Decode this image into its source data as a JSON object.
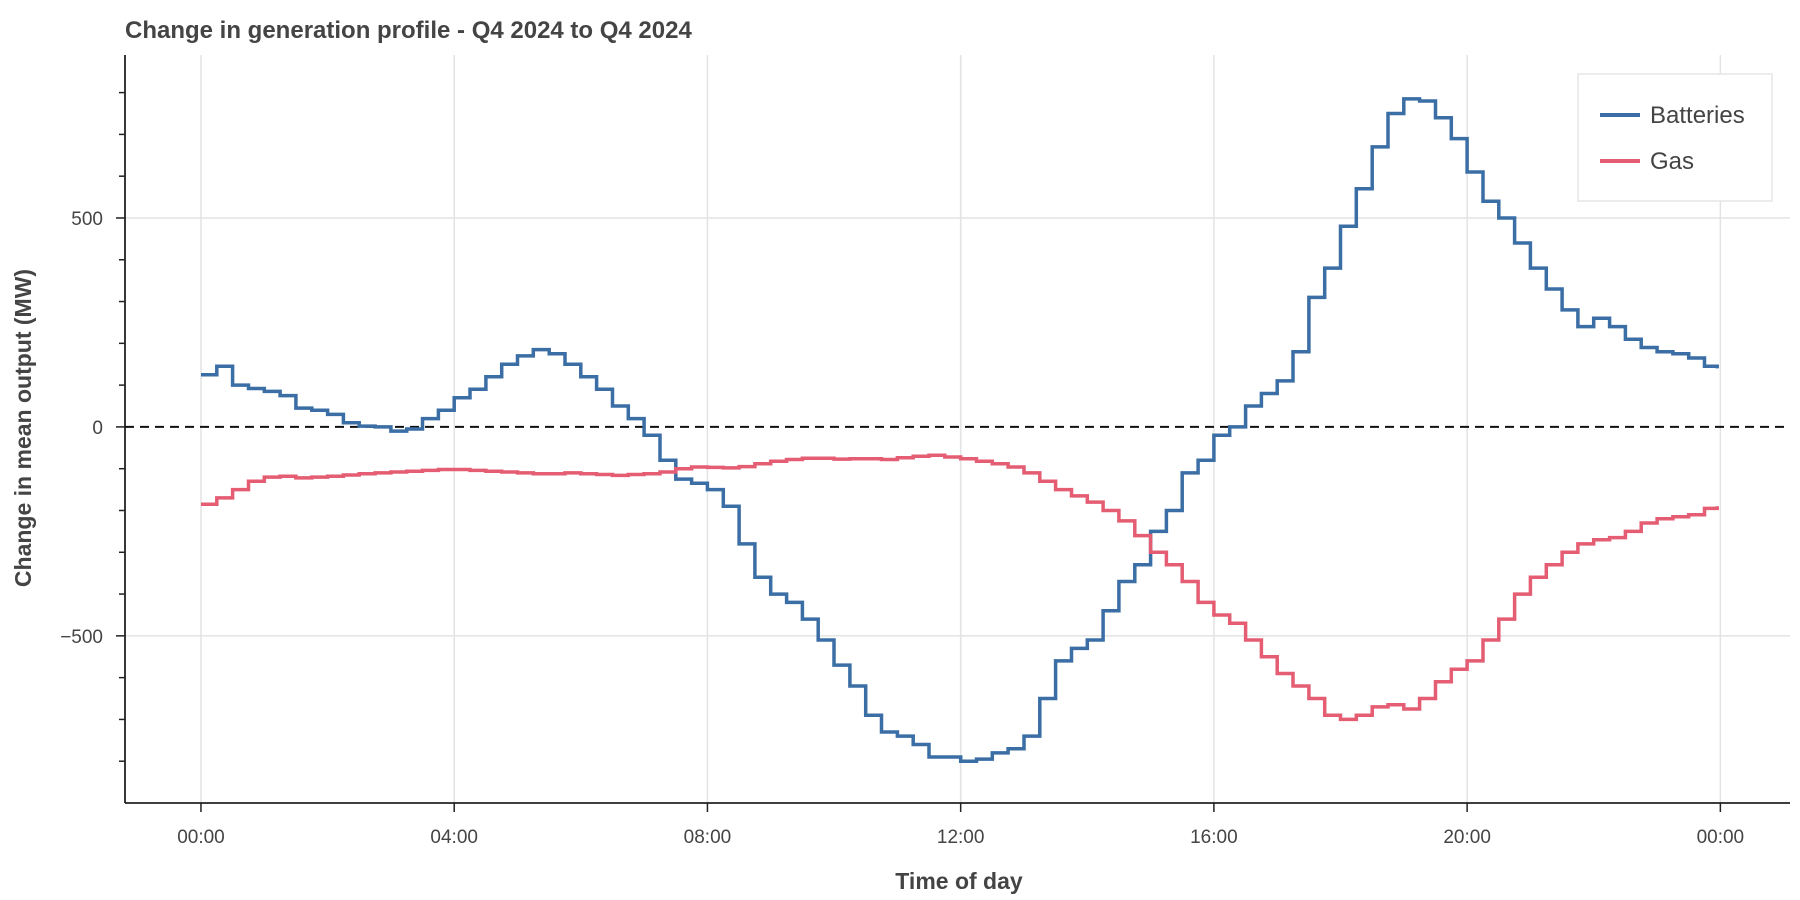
{
  "chart_data": {
    "type": "line",
    "title": "Change in generation profile - Q4 2024 to Q4 2024",
    "xlabel": "Time of day",
    "ylabel": "Change in mean output (MW)",
    "x_ticks": [
      "00:00",
      "04:00",
      "08:00",
      "12:00",
      "16:00",
      "20:00",
      "00:00"
    ],
    "y_ticks": [
      -500,
      0,
      500
    ],
    "y_tick_labels": [
      "−500",
      "0",
      "500"
    ],
    "xlim_hours": [
      -1.2,
      25.1
    ],
    "ylim": [
      -900,
      890
    ],
    "grid": true,
    "zero_line": "dashed",
    "legend_position": "top-right",
    "series": [
      {
        "name": "Batteries",
        "color": "#3a6ea5",
        "points": [
          [
            0.0,
            125
          ],
          [
            0.25,
            145
          ],
          [
            0.5,
            100
          ],
          [
            0.75,
            92
          ],
          [
            1.0,
            85
          ],
          [
            1.25,
            75
          ],
          [
            1.5,
            45
          ],
          [
            1.75,
            40
          ],
          [
            2.0,
            30
          ],
          [
            2.25,
            10
          ],
          [
            2.5,
            2
          ],
          [
            2.75,
            0
          ],
          [
            3.0,
            -10
          ],
          [
            3.25,
            -5
          ],
          [
            3.5,
            20
          ],
          [
            3.75,
            40
          ],
          [
            4.0,
            70
          ],
          [
            4.25,
            90
          ],
          [
            4.5,
            120
          ],
          [
            4.75,
            150
          ],
          [
            5.0,
            170
          ],
          [
            5.25,
            185
          ],
          [
            5.5,
            175
          ],
          [
            5.75,
            150
          ],
          [
            6.0,
            120
          ],
          [
            6.25,
            90
          ],
          [
            6.5,
            50
          ],
          [
            6.75,
            20
          ],
          [
            7.0,
            -20
          ],
          [
            7.25,
            -80
          ],
          [
            7.5,
            -125
          ],
          [
            7.75,
            -135
          ],
          [
            8.0,
            -150
          ],
          [
            8.25,
            -190
          ],
          [
            8.5,
            -280
          ],
          [
            8.75,
            -360
          ],
          [
            9.0,
            -400
          ],
          [
            9.25,
            -420
          ],
          [
            9.5,
            -460
          ],
          [
            9.75,
            -510
          ],
          [
            10.0,
            -570
          ],
          [
            10.25,
            -620
          ],
          [
            10.5,
            -690
          ],
          [
            10.75,
            -730
          ],
          [
            11.0,
            -740
          ],
          [
            11.25,
            -760
          ],
          [
            11.5,
            -790
          ],
          [
            11.75,
            -790
          ],
          [
            12.0,
            -800
          ],
          [
            12.25,
            -795
          ],
          [
            12.5,
            -780
          ],
          [
            12.75,
            -770
          ],
          [
            13.0,
            -740
          ],
          [
            13.25,
            -650
          ],
          [
            13.5,
            -560
          ],
          [
            13.75,
            -530
          ],
          [
            14.0,
            -510
          ],
          [
            14.25,
            -440
          ],
          [
            14.5,
            -370
          ],
          [
            14.75,
            -330
          ],
          [
            15.0,
            -250
          ],
          [
            15.25,
            -200
          ],
          [
            15.5,
            -110
          ],
          [
            15.75,
            -80
          ],
          [
            16.0,
            -20
          ],
          [
            16.25,
            0
          ],
          [
            16.5,
            50
          ],
          [
            16.75,
            80
          ],
          [
            17.0,
            110
          ],
          [
            17.25,
            180
          ],
          [
            17.5,
            310
          ],
          [
            17.75,
            380
          ],
          [
            18.0,
            480
          ],
          [
            18.25,
            570
          ],
          [
            18.5,
            670
          ],
          [
            18.75,
            750
          ],
          [
            19.0,
            785
          ],
          [
            19.25,
            780
          ],
          [
            19.5,
            740
          ],
          [
            19.75,
            690
          ],
          [
            20.0,
            610
          ],
          [
            20.25,
            540
          ],
          [
            20.5,
            500
          ],
          [
            20.75,
            440
          ],
          [
            21.0,
            380
          ],
          [
            21.25,
            330
          ],
          [
            21.5,
            280
          ],
          [
            21.75,
            240
          ],
          [
            22.0,
            260
          ],
          [
            22.25,
            240
          ],
          [
            22.5,
            210
          ],
          [
            22.75,
            190
          ],
          [
            23.0,
            180
          ],
          [
            23.25,
            175
          ],
          [
            23.5,
            165
          ],
          [
            23.75,
            145
          ],
          [
            23.95,
            140
          ]
        ]
      },
      {
        "name": "Gas",
        "color": "#e45d72",
        "points": [
          [
            0.0,
            -185
          ],
          [
            0.25,
            -170
          ],
          [
            0.5,
            -150
          ],
          [
            0.75,
            -130
          ],
          [
            1.0,
            -120
          ],
          [
            1.25,
            -118
          ],
          [
            1.5,
            -122
          ],
          [
            1.75,
            -120
          ],
          [
            2.0,
            -118
          ],
          [
            2.25,
            -115
          ],
          [
            2.5,
            -112
          ],
          [
            2.75,
            -110
          ],
          [
            3.0,
            -108
          ],
          [
            3.25,
            -106
          ],
          [
            3.5,
            -104
          ],
          [
            3.75,
            -102
          ],
          [
            4.0,
            -102
          ],
          [
            4.25,
            -104
          ],
          [
            4.5,
            -106
          ],
          [
            4.75,
            -108
          ],
          [
            5.0,
            -110
          ],
          [
            5.25,
            -112
          ],
          [
            5.5,
            -112
          ],
          [
            5.75,
            -110
          ],
          [
            6.0,
            -112
          ],
          [
            6.25,
            -114
          ],
          [
            6.5,
            -116
          ],
          [
            6.75,
            -114
          ],
          [
            7.0,
            -112
          ],
          [
            7.25,
            -108
          ],
          [
            7.5,
            -100
          ],
          [
            7.75,
            -96
          ],
          [
            8.0,
            -97
          ],
          [
            8.25,
            -98
          ],
          [
            8.5,
            -95
          ],
          [
            8.75,
            -88
          ],
          [
            9.0,
            -82
          ],
          [
            9.25,
            -78
          ],
          [
            9.5,
            -75
          ],
          [
            9.75,
            -75
          ],
          [
            10.0,
            -77
          ],
          [
            10.25,
            -76
          ],
          [
            10.5,
            -76
          ],
          [
            10.75,
            -78
          ],
          [
            11.0,
            -74
          ],
          [
            11.25,
            -70
          ],
          [
            11.5,
            -68
          ],
          [
            11.75,
            -72
          ],
          [
            12.0,
            -76
          ],
          [
            12.25,
            -82
          ],
          [
            12.5,
            -88
          ],
          [
            12.75,
            -96
          ],
          [
            13.0,
            -110
          ],
          [
            13.25,
            -130
          ],
          [
            13.5,
            -150
          ],
          [
            13.75,
            -165
          ],
          [
            14.0,
            -180
          ],
          [
            14.25,
            -200
          ],
          [
            14.5,
            -225
          ],
          [
            14.75,
            -260
          ],
          [
            15.0,
            -300
          ],
          [
            15.25,
            -330
          ],
          [
            15.5,
            -370
          ],
          [
            15.75,
            -420
          ],
          [
            16.0,
            -450
          ],
          [
            16.25,
            -470
          ],
          [
            16.5,
            -510
          ],
          [
            16.75,
            -550
          ],
          [
            17.0,
            -590
          ],
          [
            17.25,
            -620
          ],
          [
            17.5,
            -650
          ],
          [
            17.75,
            -690
          ],
          [
            18.0,
            -700
          ],
          [
            18.25,
            -690
          ],
          [
            18.5,
            -670
          ],
          [
            18.75,
            -665
          ],
          [
            19.0,
            -675
          ],
          [
            19.25,
            -650
          ],
          [
            19.5,
            -610
          ],
          [
            19.75,
            -580
          ],
          [
            20.0,
            -560
          ],
          [
            20.25,
            -510
          ],
          [
            20.5,
            -460
          ],
          [
            20.75,
            -400
          ],
          [
            21.0,
            -360
          ],
          [
            21.25,
            -330
          ],
          [
            21.5,
            -300
          ],
          [
            21.75,
            -280
          ],
          [
            22.0,
            -270
          ],
          [
            22.25,
            -265
          ],
          [
            22.5,
            -250
          ],
          [
            22.75,
            -230
          ],
          [
            23.0,
            -220
          ],
          [
            23.25,
            -215
          ],
          [
            23.5,
            -210
          ],
          [
            23.75,
            -195
          ],
          [
            23.95,
            -190
          ]
        ]
      }
    ]
  }
}
